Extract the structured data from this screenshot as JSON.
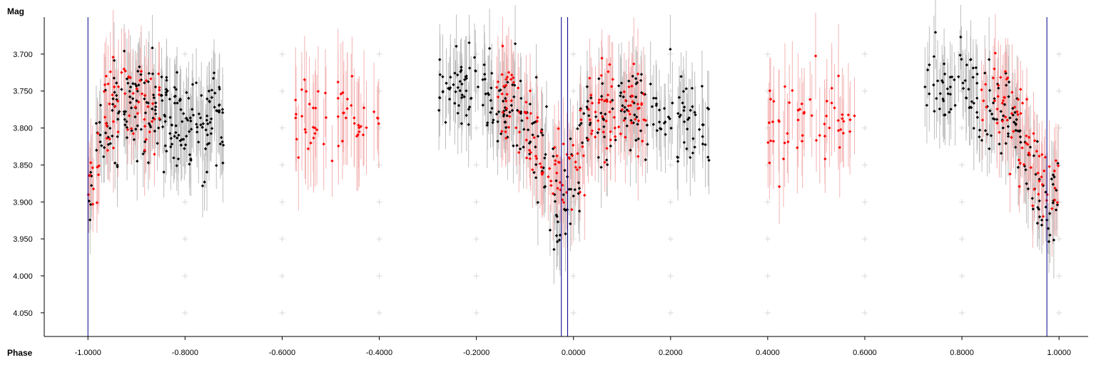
{
  "chart_data": {
    "type": "scatter",
    "title": "",
    "xlabel": "Phase",
    "ylabel": "Mag",
    "xlim": [
      -1.09,
      1.06
    ],
    "ylim": [
      4.082,
      3.65
    ],
    "y_inverted": true,
    "grid": "cross-markers",
    "legend": "none",
    "x_ticks": [
      -1.0,
      -0.8,
      -0.6,
      -0.4,
      -0.2,
      0.0,
      0.2,
      0.4,
      0.6,
      0.8,
      1.0
    ],
    "x_tick_labels": [
      "-1.0000",
      "-0.8000",
      "-0.6000",
      "-0.4000",
      "-0.2000",
      "0.0000",
      "0.2000",
      "0.4000",
      "0.6000",
      "0.8000",
      "1.0000"
    ],
    "y_ticks": [
      3.7,
      3.75,
      3.8,
      3.85,
      3.9,
      3.95,
      4.0,
      4.05
    ],
    "y_tick_labels": [
      "3.700",
      "3.750",
      "3.800",
      "3.850",
      "3.900",
      "3.950",
      "4.000",
      "4.050"
    ],
    "vertical_lines": [
      -1.0,
      -0.025,
      -0.012,
      0.975
    ],
    "colors": {
      "black_points": "#000000",
      "black_errorbars": "#bdbdbd",
      "red_points": "#ff0000",
      "red_errorbars": "#f4b3b3",
      "vertical_lines": "#00008b",
      "grid_markers": "#d9d9d9",
      "axes": "#000000"
    },
    "series": [
      {
        "color": "black",
        "segments": [
          {
            "x": [
              -1.0,
              -0.72
            ],
            "y_trend": [
              [
                -1.0,
                3.92
              ],
              [
                -0.98,
                3.84
              ],
              [
                -0.96,
                3.78
              ],
              [
                -0.9,
                3.77
              ],
              [
                -0.8,
                3.79
              ],
              [
                -0.72,
                3.8
              ]
            ],
            "scatter": 0.035,
            "err": 0.045,
            "n": 230
          },
          {
            "x": [
              -0.28,
              0.28
            ],
            "y_trend": [
              [
                -0.28,
                3.74
              ],
              [
                -0.2,
                3.745
              ],
              [
                -0.1,
                3.79
              ],
              [
                -0.05,
                3.87
              ],
              [
                -0.03,
                3.93
              ],
              [
                0.0,
                3.87
              ],
              [
                0.03,
                3.79
              ],
              [
                0.1,
                3.77
              ],
              [
                0.2,
                3.79
              ],
              [
                0.28,
                3.8
              ]
            ],
            "scatter": 0.032,
            "err": 0.045,
            "n": 300
          },
          {
            "x": [
              0.72,
              1.0
            ],
            "y_trend": [
              [
                0.72,
                3.74
              ],
              [
                0.8,
                3.745
              ],
              [
                0.9,
                3.79
              ],
              [
                0.95,
                3.87
              ],
              [
                0.975,
                3.94
              ],
              [
                1.0,
                3.87
              ]
            ],
            "scatter": 0.03,
            "err": 0.045,
            "n": 150
          }
        ]
      },
      {
        "color": "red",
        "segments": [
          {
            "x": [
              -1.0,
              -0.85
            ],
            "y_trend": [
              [
                -1.0,
                3.92
              ],
              [
                -0.98,
                3.84
              ],
              [
                -0.96,
                3.76
              ],
              [
                -0.9,
                3.76
              ],
              [
                -0.85,
                3.78
              ]
            ],
            "scatter": 0.03,
            "err": 0.05,
            "n": 70
          },
          {
            "x": [
              -0.58,
              -0.4
            ],
            "y_trend": [
              [
                -0.58,
                3.79
              ],
              [
                -0.5,
                3.79
              ],
              [
                -0.4,
                3.78
              ]
            ],
            "scatter": 0.03,
            "err": 0.06,
            "n": 55
          },
          {
            "x": [
              -0.16,
              0.15
            ],
            "y_trend": [
              [
                -0.16,
                3.75
              ],
              [
                -0.1,
                3.79
              ],
              [
                -0.05,
                3.86
              ],
              [
                -0.02,
                3.88
              ],
              [
                0.0,
                3.86
              ],
              [
                0.03,
                3.79
              ],
              [
                0.1,
                3.77
              ],
              [
                0.15,
                3.78
              ]
            ],
            "scatter": 0.03,
            "err": 0.05,
            "n": 160
          },
          {
            "x": [
              0.4,
              0.58
            ],
            "y_trend": [
              [
                0.4,
                3.79
              ],
              [
                0.5,
                3.79
              ],
              [
                0.58,
                3.78
              ]
            ],
            "scatter": 0.03,
            "err": 0.06,
            "n": 55
          },
          {
            "x": [
              0.84,
              1.0
            ],
            "y_trend": [
              [
                0.84,
                3.75
              ],
              [
                0.9,
                3.78
              ],
              [
                0.95,
                3.84
              ],
              [
                0.98,
                3.88
              ],
              [
                1.0,
                3.87
              ]
            ],
            "scatter": 0.03,
            "err": 0.05,
            "n": 75
          }
        ]
      }
    ]
  }
}
